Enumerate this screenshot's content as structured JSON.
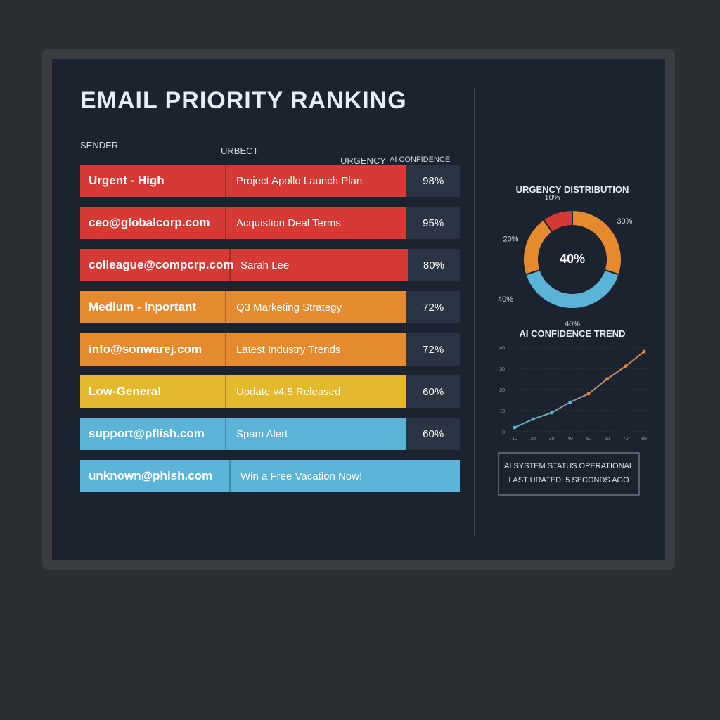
{
  "header": {
    "title": "EMAIL PRIORITY RANKING"
  },
  "table": {
    "columns": [
      "SENDER",
      "URBECT",
      "URGENCY",
      "AI CONFIDENCE"
    ],
    "rows": [
      {
        "sender": "Urgent - High",
        "subject": "Project Apollo Launch Plan",
        "confidence": "98%",
        "color": "#d63a34"
      },
      {
        "sender": "ceo@globalcorp.com",
        "subject": "Acquistion Deal Terms",
        "confidence": "95%",
        "color": "#d63a34"
      },
      {
        "sender": "colleague@compcrp.com",
        "subject": "Sarah Lee",
        "confidence": "80%",
        "color": "#d63a34"
      },
      {
        "sender": "Medium - inportant",
        "subject": "Q3 Marketing Strategy",
        "confidence": "72%",
        "color": "#e58a2e"
      },
      {
        "sender": "info@sonwarej.com",
        "subject": "Latest Industry Trends",
        "confidence": "72%",
        "color": "#e58a2e"
      },
      {
        "sender": "Low-General",
        "subject": "Update v4.5 Released",
        "confidence": "60%",
        "color": "#e5b92e"
      },
      {
        "sender": "support@pflish.com",
        "subject": "Spam Alert",
        "confidence": "60%",
        "color": "#5bb4d8"
      },
      {
        "sender": "unknown@phish.com",
        "subject": "Win a Free Vacation Now!",
        "confidence": null,
        "color": "#5bb4d8"
      }
    ]
  },
  "donut": {
    "title": "URGENCY DISTRIBUTION",
    "center_label": "40%",
    "side_label": "40%",
    "segments": [
      {
        "label": "30%",
        "value": 30,
        "color": "#e58a2e"
      },
      {
        "label": "40%",
        "value": 40,
        "color": "#5bb4d8"
      },
      {
        "label": "20%",
        "value": 20,
        "color": "#e58a2e"
      },
      {
        "label": "10%",
        "value": 10,
        "color": "#d63a34"
      }
    ]
  },
  "trend": {
    "title": "AI CONFIDENCE TREND",
    "values": [
      2,
      6,
      9,
      14,
      18,
      25,
      31,
      38
    ],
    "ylim": [
      0,
      40
    ],
    "yticks": [
      0,
      10,
      20,
      30,
      40
    ],
    "xlabels": [
      "10",
      "20",
      "30",
      "40",
      "50",
      "60",
      "70",
      "80"
    ],
    "color_start": "#5bb4d8",
    "color_end": "#e8843a"
  },
  "status": {
    "line1": "AI SYSTEM STATUS OPERATIONAL",
    "line2": "LAST URATED: 5 SECONDS AGO"
  }
}
